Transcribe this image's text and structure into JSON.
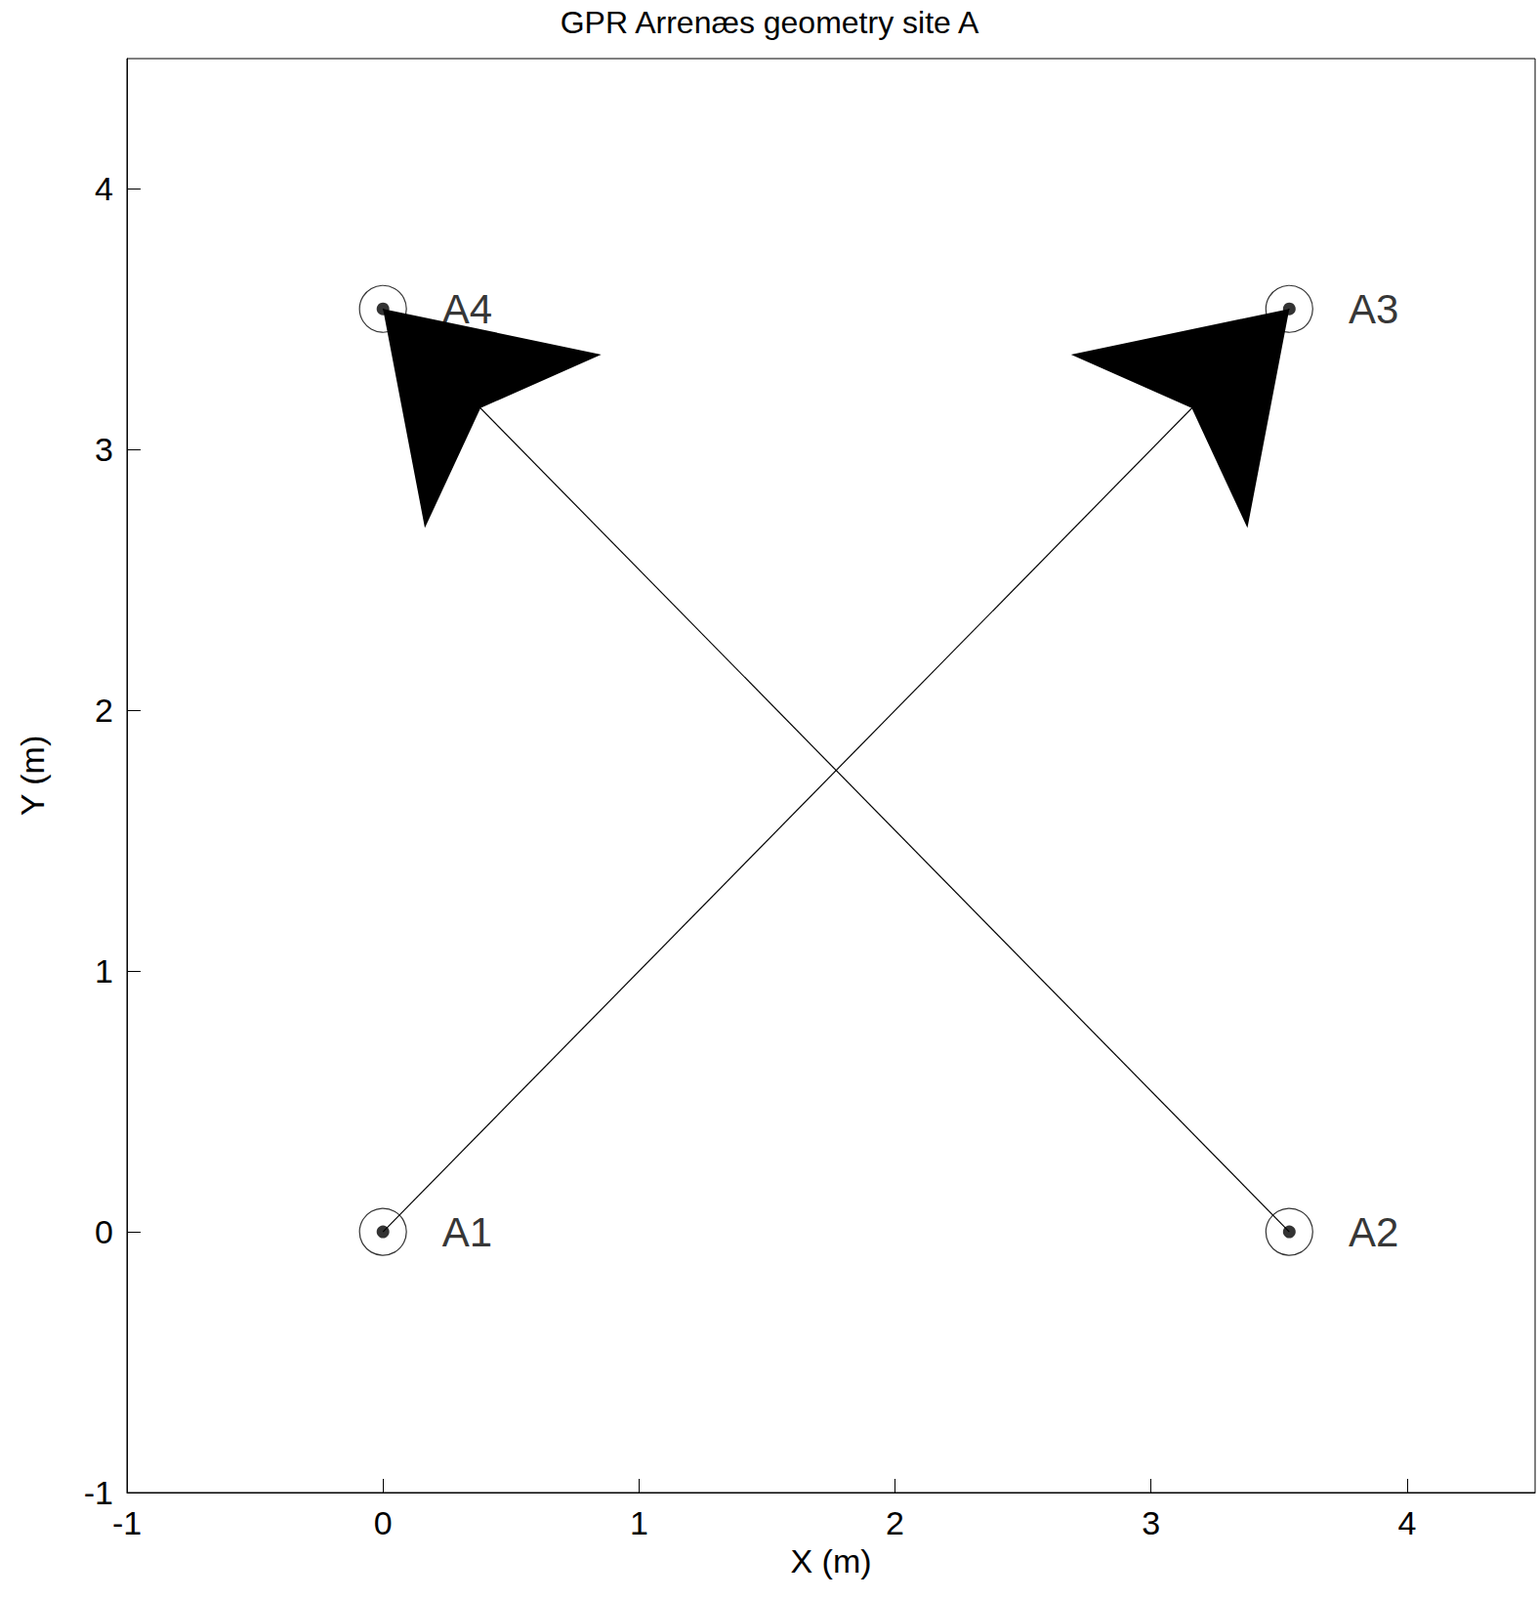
{
  "chart_data": {
    "type": "scatter",
    "title": "GPR Arrenæs geometry site A",
    "x_label": "X (m)",
    "y_label": "Y (m)",
    "point_labels": [
      "A1",
      "A2",
      "A3",
      "A4"
    ],
    "x": [
      0,
      3.54,
      3.54,
      0
    ],
    "y": [
      0,
      0,
      3.54,
      3.54
    ],
    "arrows": [
      [
        "A1",
        "A3"
      ],
      [
        "A2",
        "A4"
      ]
    ],
    "xlim": [
      -1,
      4.5
    ],
    "ylim": [
      -1,
      4.5
    ],
    "xticks": [
      -1,
      0,
      1,
      2,
      3,
      4
    ],
    "yticks": [
      -1,
      0,
      1,
      2,
      3,
      4
    ],
    "marker": "circle",
    "color": "#000000",
    "grid": false
  }
}
